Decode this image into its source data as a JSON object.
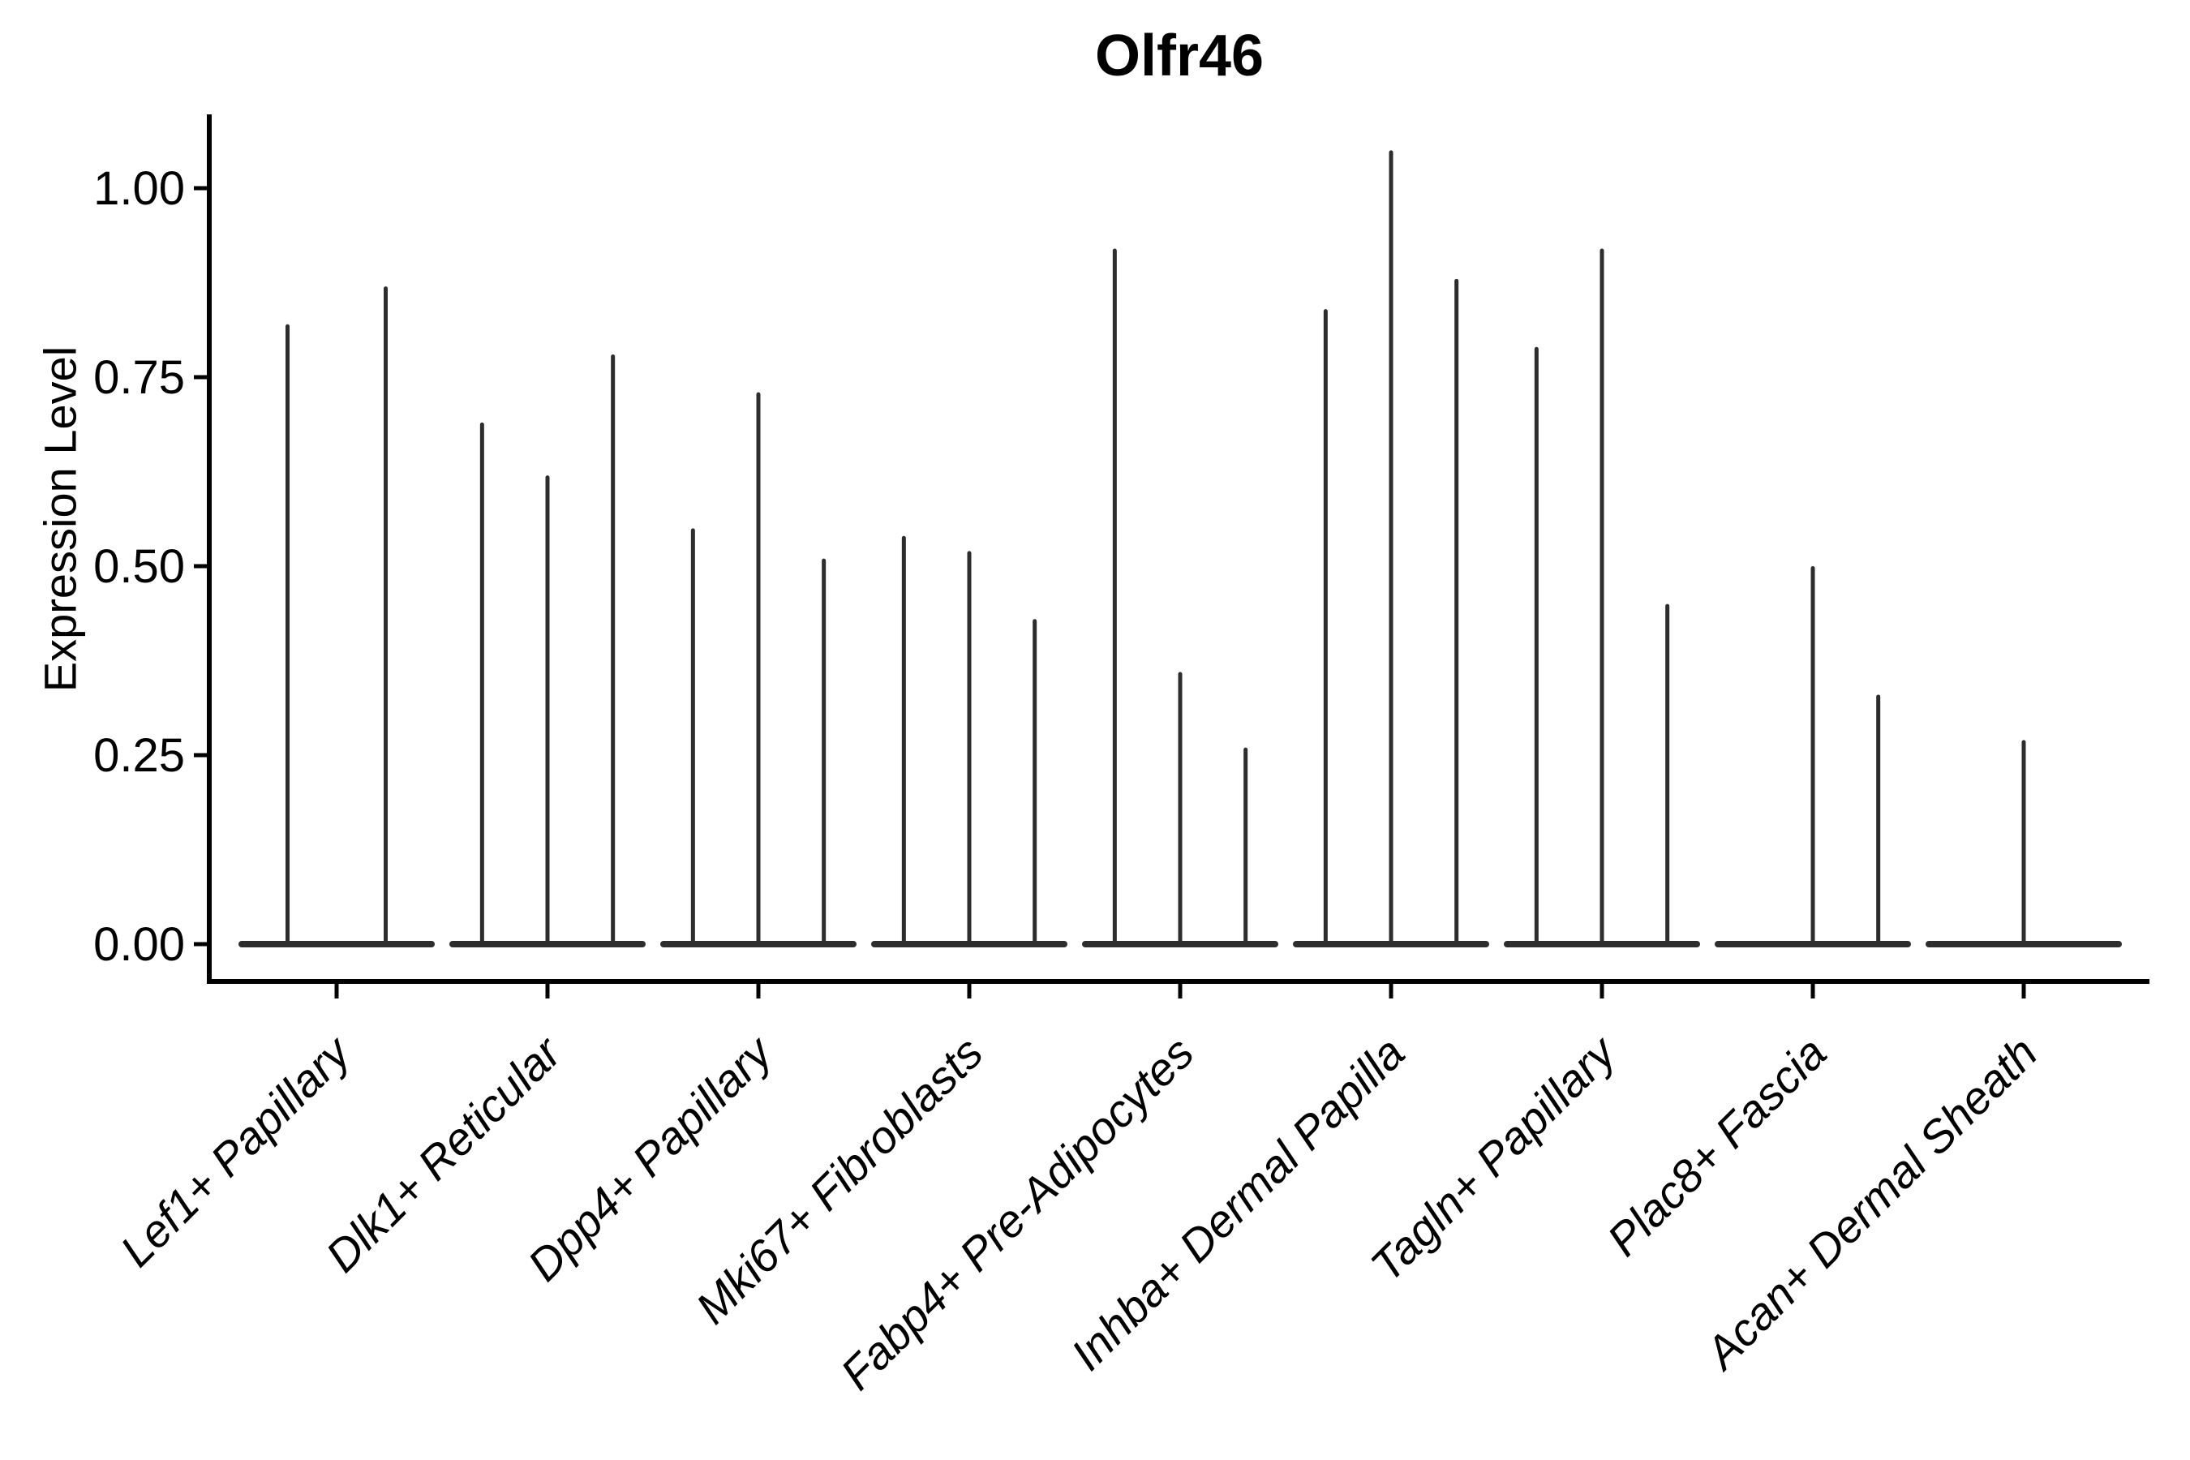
{
  "title": "Olfr46",
  "y_axis": {
    "label": "Expression Level",
    "tick_labels": [
      "0.00",
      "0.25",
      "0.50",
      "0.75",
      "1.00"
    ]
  },
  "chart_data": {
    "type": "violin",
    "title": "Olfr46",
    "xlabel": "",
    "ylabel": "Expression Level",
    "ylim": [
      -0.05,
      1.1
    ],
    "yticks": [
      0.0,
      0.25,
      0.5,
      0.75,
      1.0
    ],
    "grid": false,
    "legend": "none",
    "description": "Sparse-expression violin plot; each category shows flat zero-level violin bodies with thin spikes reaching the maximum expression value of each violin",
    "categories": [
      {
        "label": "Lef1+ Papillary",
        "violin_max_values": [
          0.82,
          0.87
        ]
      },
      {
        "label": "Dlk1+ Reticular",
        "violin_max_values": [
          0.69,
          0.62,
          0.78
        ]
      },
      {
        "label": "Dpp4+ Papillary",
        "violin_max_values": [
          0.55,
          0.73,
          0.51
        ]
      },
      {
        "label": "Mki67+ Fibroblasts",
        "violin_max_values": [
          0.54,
          0.52,
          0.43
        ]
      },
      {
        "label": "Fabp4+ Pre-Adipocytes",
        "violin_max_values": [
          0.92,
          0.36,
          0.26
        ]
      },
      {
        "label": "Inhba+ Dermal Papilla",
        "violin_max_values": [
          0.84,
          1.05,
          0.88
        ]
      },
      {
        "label": "Tagln+ Papillary",
        "violin_max_values": [
          0.79,
          0.92,
          0.45
        ]
      },
      {
        "label": "Plac8+ Fascia",
        "violin_max_values": [
          0.0,
          0.5,
          0.33
        ]
      },
      {
        "label": "Acan+ Dermal Sheath",
        "violin_max_values": [
          0.0,
          0.27,
          0.0
        ]
      }
    ],
    "style": {
      "violin_color": "#2d2d2d",
      "axis_color": "#000000",
      "text_color": "#000000",
      "background": "#ffffff"
    }
  }
}
